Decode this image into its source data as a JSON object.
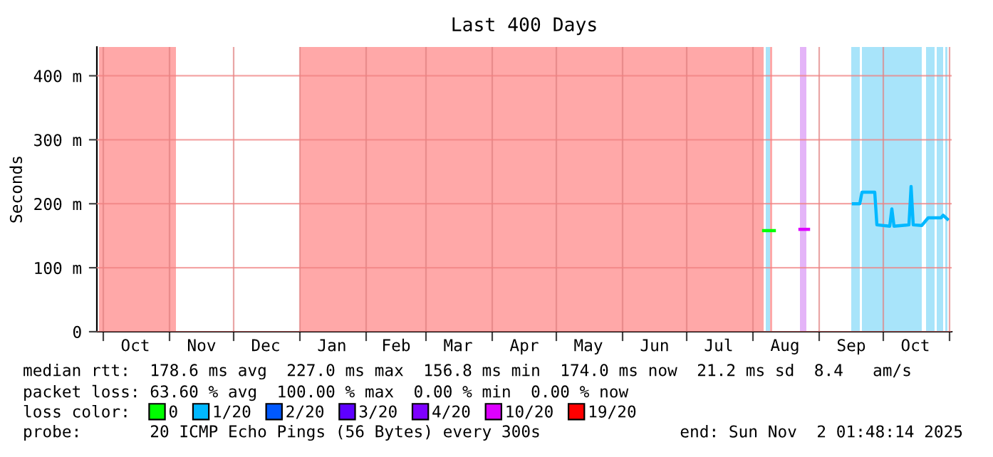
{
  "chart_data": {
    "type": "line",
    "title": "Last 400 Days",
    "ylabel": "Seconds",
    "legend_title": "loss color:",
    "legend": "bottom",
    "grid": true,
    "xlim": [
      "2024-09-28",
      "2025-11-02"
    ],
    "xticks": [
      {
        "value": "2024-10-01",
        "label": null
      },
      {
        "value": "2024-10-16",
        "label": "Oct"
      },
      {
        "value": "2024-11-01",
        "label": null
      },
      {
        "value": "2024-11-16",
        "label": "Nov"
      },
      {
        "value": "2024-12-01",
        "label": null
      },
      {
        "value": "2024-12-16",
        "label": "Dec"
      },
      {
        "value": "2025-01-01",
        "label": null
      },
      {
        "value": "2025-01-16",
        "label": "Jan"
      },
      {
        "value": "2025-02-01",
        "label": null
      },
      {
        "value": "2025-02-15",
        "label": "Feb"
      },
      {
        "value": "2025-03-01",
        "label": null
      },
      {
        "value": "2025-03-16",
        "label": "Mar"
      },
      {
        "value": "2025-04-01",
        "label": null
      },
      {
        "value": "2025-04-16",
        "label": "Apr"
      },
      {
        "value": "2025-05-01",
        "label": null
      },
      {
        "value": "2025-05-16",
        "label": "May"
      },
      {
        "value": "2025-06-01",
        "label": null
      },
      {
        "value": "2025-06-16",
        "label": "Jun"
      },
      {
        "value": "2025-07-01",
        "label": null
      },
      {
        "value": "2025-07-16",
        "label": "Jul"
      },
      {
        "value": "2025-08-01",
        "label": null
      },
      {
        "value": "2025-08-16",
        "label": "Aug"
      },
      {
        "value": "2025-09-01",
        "label": null
      },
      {
        "value": "2025-09-16",
        "label": "Sep"
      },
      {
        "value": "2025-10-01",
        "label": null
      },
      {
        "value": "2025-10-16",
        "label": "Oct"
      },
      {
        "value": "2025-11-01",
        "label": null
      }
    ],
    "ylim": [
      0,
      445
    ],
    "yticks": [
      {
        "value": 0,
        "label": "0"
      },
      {
        "value": 100,
        "label": "100 m"
      },
      {
        "value": 200,
        "label": "200 m"
      },
      {
        "value": 300,
        "label": "300 m"
      },
      {
        "value": 400,
        "label": "400 m"
      }
    ],
    "line_style": "solid",
    "marker": "none",
    "series": [
      {
        "name": "0",
        "color": "#00ff00",
        "x": [
          "2025-08-06",
          "2025-08-11"
        ],
        "values": [
          158,
          158
        ]
      },
      {
        "name": "1/20",
        "color": "#00b8ff",
        "x": [
          "2025-09-17",
          "2025-09-20",
          "2025-09-21",
          "2025-09-27",
          "2025-09-28",
          "2025-10-04",
          "2025-10-05",
          "2025-10-06",
          "2025-10-13",
          "2025-10-14",
          "2025-10-15",
          "2025-10-19",
          "2025-10-22",
          "2025-10-28",
          "2025-10-29",
          "2025-10-31"
        ],
        "values": [
          200,
          200,
          218,
          218,
          167,
          165,
          192,
          165,
          167,
          227,
          167,
          166,
          178,
          178,
          182,
          176
        ]
      },
      {
        "name": "2/20",
        "color": "#0059ff"
      },
      {
        "name": "3/20",
        "color": "#5e00ff"
      },
      {
        "name": "4/20",
        "color": "#7e00ff"
      },
      {
        "name": "10/20",
        "color": "#dd00ff",
        "x": [
          "2025-08-23",
          "2025-08-27"
        ],
        "values": [
          160,
          160
        ]
      },
      {
        "name": "19/20",
        "color": "#ff0000"
      }
    ],
    "bands": [
      {
        "axis": "x",
        "from": "2024-09-29",
        "to": "2024-11-04",
        "color": "#ffa8a8"
      },
      {
        "axis": "x",
        "from": "2025-01-01",
        "to": "2025-08-06",
        "color": "#ffa8a8"
      },
      {
        "axis": "x",
        "from": "2025-08-07",
        "to": "2025-08-09",
        "color": "#a8e4fa"
      },
      {
        "axis": "x",
        "from": "2025-08-09",
        "to": "2025-08-10",
        "color": "#ffa8a8"
      },
      {
        "axis": "x",
        "from": "2025-08-23",
        "to": "2025-08-26",
        "color": "#e4b4f8"
      },
      {
        "axis": "x",
        "from": "2025-09-16",
        "to": "2025-09-20",
        "color": "#a8e4fa"
      },
      {
        "axis": "x",
        "from": "2025-09-21",
        "to": "2025-10-19",
        "color": "#a8e4fa"
      },
      {
        "axis": "x",
        "from": "2025-10-21",
        "to": "2025-10-25",
        "color": "#a8e4fa"
      },
      {
        "axis": "x",
        "from": "2025-10-26",
        "to": "2025-10-29",
        "color": "#a8e4fa"
      },
      {
        "axis": "x",
        "from": "2025-10-30",
        "to": "2025-10-31",
        "color": "#a8e4fa"
      }
    ],
    "annotations": [
      "median rtt:  178.6 ms avg  227.0 ms max  156.8 ms min  174.0 ms now  21.2 ms sd  8.4   am/s",
      "packet loss: 63.60 % avg  100.00 % max  0.00 % min  0.00 % now",
      "probe:       20 ICMP Echo Pings (56 Bytes) every 300s",
      "end: Sun Nov  2 01:48:14 2025"
    ]
  }
}
